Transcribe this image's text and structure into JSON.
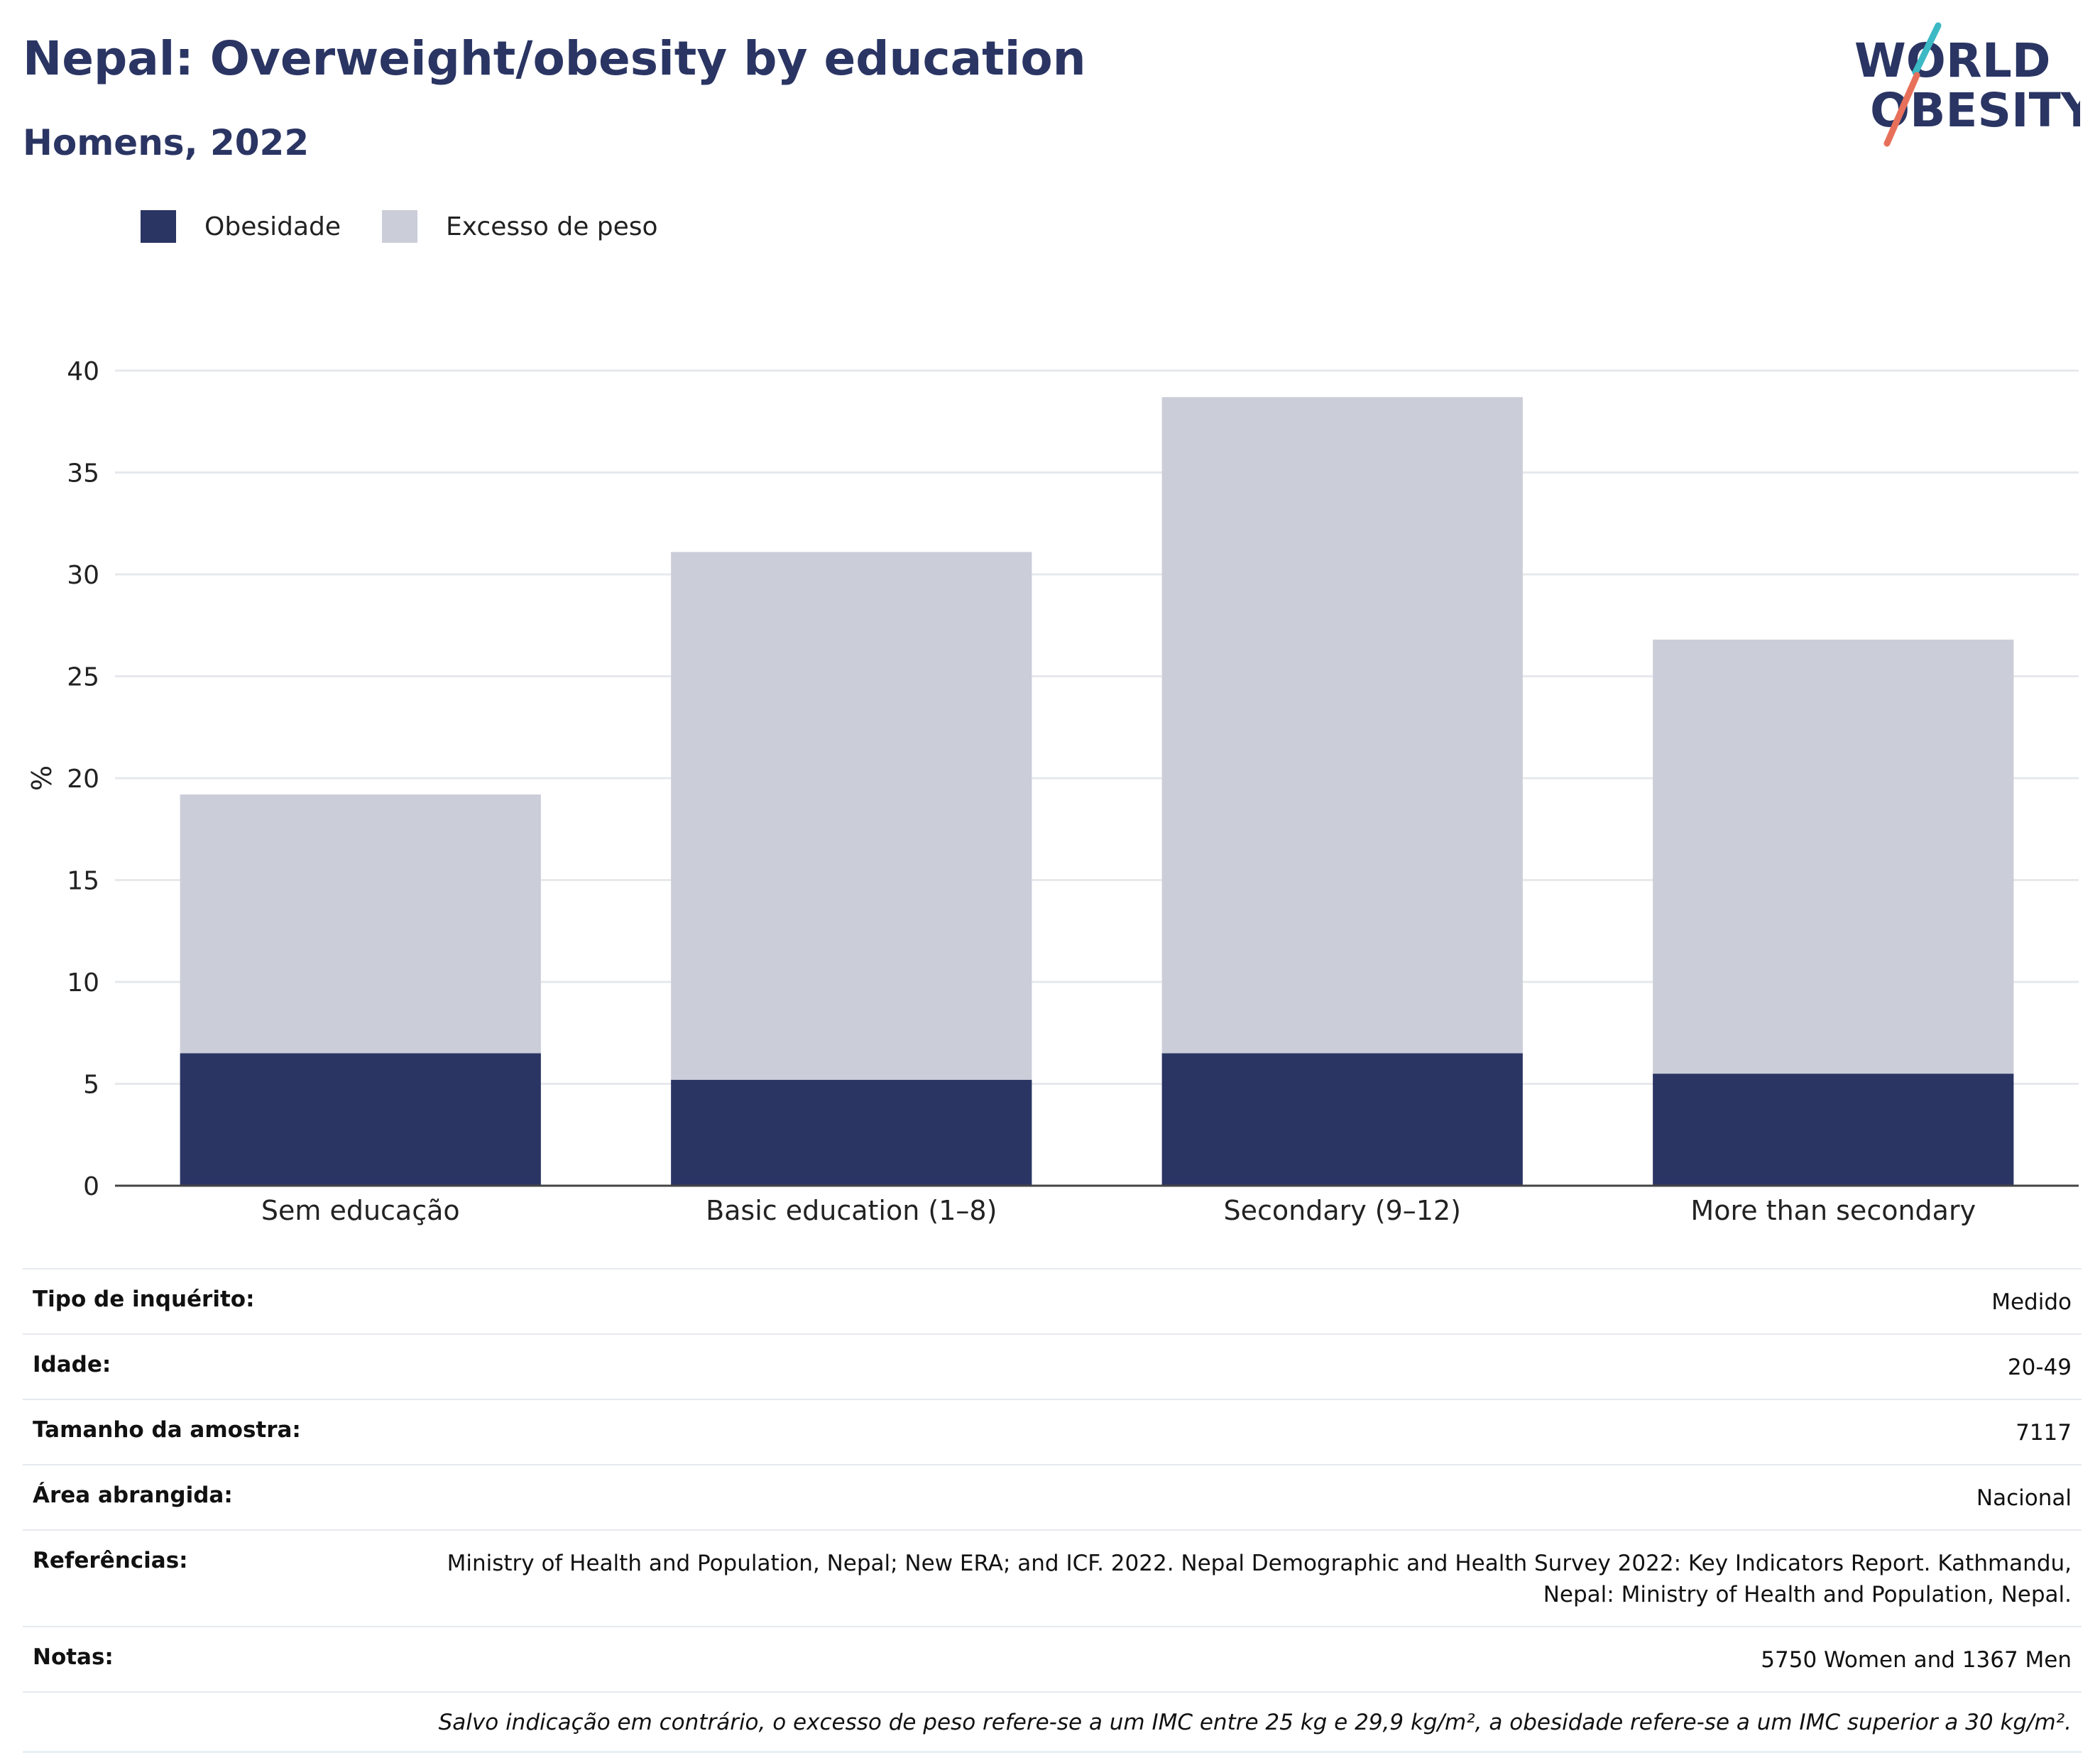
{
  "header": {
    "title": "Nepal: Overweight/obesity by education",
    "subtitle": "Homens, 2022",
    "logo_text_top": "WORLD",
    "logo_text_bottom": "OBESITY"
  },
  "legend": {
    "items": [
      {
        "label": "Obesidade",
        "color": "#2a3563"
      },
      {
        "label": "Excesso de peso",
        "color": "#cbcdd9"
      }
    ]
  },
  "colors": {
    "obesity": "#2a3563",
    "overweight": "#cbcdd9",
    "logo_teal": "#3bb9c4",
    "logo_coral": "#e8705a"
  },
  "chart_data": {
    "type": "bar",
    "stacked": true,
    "categories": [
      "Sem educação",
      "Basic education (1–8)",
      "Secondary (9–12)",
      "More than secondary"
    ],
    "series": [
      {
        "name": "Obesidade",
        "values": [
          6.5,
          5.2,
          6.5,
          5.5
        ]
      },
      {
        "name": "Excesso de peso",
        "values": [
          12.7,
          25.9,
          32.2,
          21.3
        ]
      }
    ],
    "ylabel": "%",
    "ylim": [
      0,
      40
    ],
    "yticks": [
      0,
      5,
      10,
      15,
      20,
      25,
      30,
      35,
      40
    ],
    "grid": true
  },
  "info": {
    "rows": [
      {
        "key": "Tipo de inquérito:",
        "value": "Medido"
      },
      {
        "key": "Idade:",
        "value": "20-49"
      },
      {
        "key": "Tamanho da amostra:",
        "value": "7117"
      },
      {
        "key": "Área abrangida:",
        "value": "Nacional"
      },
      {
        "key": "Referências:",
        "value": "Ministry of Health and Population, Nepal; New ERA; and ICF. 2022. Nepal Demographic and Health Survey 2022: Key Indicators Report. Kathmandu, Nepal: Ministry of Health and Population, Nepal."
      },
      {
        "key": "Notas:",
        "value": "5750 Women and 1367 Men"
      }
    ],
    "footnote": "Salvo indicação em contrário, o excesso de peso refere-se a um IMC entre 25 kg e 29,9 kg/m², a obesidade refere-se a um IMC superior a 30 kg/m²."
  }
}
